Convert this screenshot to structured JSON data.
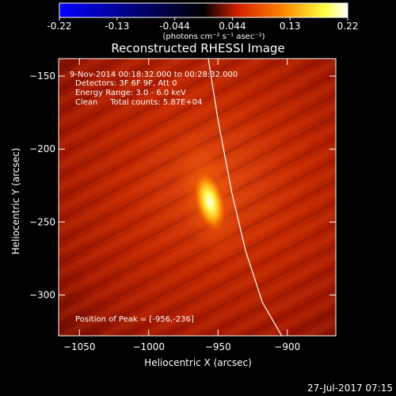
{
  "colorbar": {
    "ticks": [
      "-0.22",
      "-0.13",
      "-0.044",
      "0.044",
      "0.13",
      "0.22"
    ],
    "units": "(photons cm⁻² s⁻¹ asec⁻²)",
    "range": [
      -0.22,
      0.22
    ],
    "colormap": [
      "#0000ff",
      "#000000",
      "#d42000",
      "#ff8800",
      "#ffff40",
      "#ffffff"
    ]
  },
  "annotations": {
    "time_range": "9-Nov-2014 00:18:32.000 to 00:28:32.000",
    "detectors": "Detectors: 3F 6F 9F, Att 0",
    "energy_range": "Energy Range: 3.0 - 6.0 keV",
    "method": "Clean     Total counts: 5.87E+04",
    "peak": "Position of Peak = [-956,-236]"
  },
  "footer": {
    "date": "27-Jul-2017 07:15"
  },
  "chart_data": {
    "type": "heatmap",
    "title": "Reconstructed RHESSI Image",
    "xlabel": "Heliocentric X (arcsec)",
    "ylabel": "Heliocentric Y (arcsec)",
    "xlim": [
      -1065,
      -865
    ],
    "ylim": [
      -328,
      -138
    ],
    "xticks": [
      {
        "value": -1050,
        "label": "−1050"
      },
      {
        "value": -1000,
        "label": "−1000"
      },
      {
        "value": -950,
        "label": "−950"
      },
      {
        "value": -900,
        "label": "−900"
      }
    ],
    "yticks": [
      {
        "value": -150,
        "label": "−150"
      },
      {
        "value": -200,
        "label": "−200"
      },
      {
        "value": -250,
        "label": "−250"
      },
      {
        "value": -300,
        "label": "−300"
      }
    ],
    "peak": {
      "x": -956,
      "y": -236
    },
    "limb_curve": [
      [
        -957,
        -138
      ],
      [
        -950,
        -180
      ],
      [
        -940,
        -230
      ],
      [
        -930,
        -270
      ],
      [
        -918,
        -305
      ],
      [
        -904,
        -328
      ]
    ]
  }
}
